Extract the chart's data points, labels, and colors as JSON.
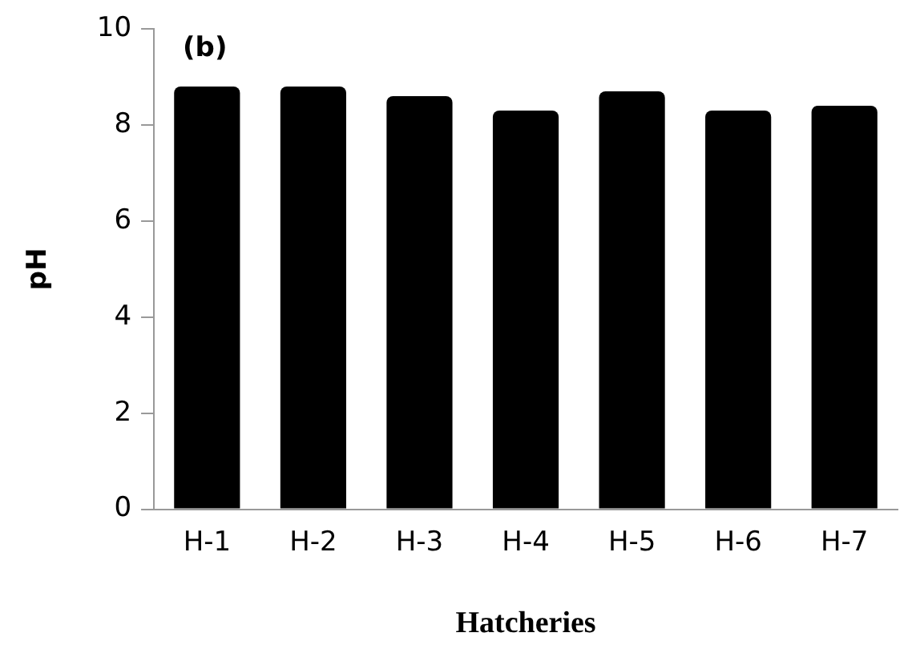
{
  "chart_data": {
    "type": "bar",
    "xlabel": "Hatcheries",
    "ylabel": "pH",
    "annotations": [
      "(b)"
    ],
    "categories": [
      "H-1",
      "H-2",
      "H-3",
      "H-4",
      "H-5",
      "H-6",
      "H-7"
    ],
    "values": [
      8.8,
      8.8,
      8.6,
      8.3,
      8.7,
      8.3,
      8.4
    ],
    "color": "#000000",
    "ylim": [
      0,
      10
    ],
    "yticks": [
      0,
      2,
      4,
      6,
      8,
      10
    ],
    "grid": false,
    "legend": false
  }
}
